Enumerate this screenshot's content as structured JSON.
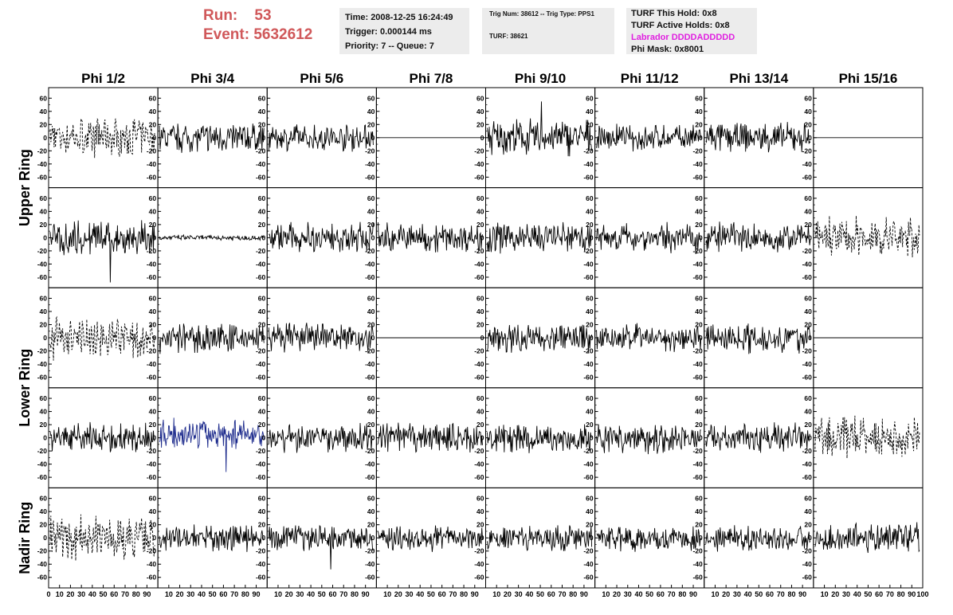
{
  "header": {
    "run_label": "Run:",
    "run_value": "53",
    "event_label": "Event:",
    "event_value": "5632612"
  },
  "info": {
    "time": "Time: 2008-12-25 16:24:49",
    "trigger": "Trigger: 0.000144 ms",
    "priority": "Priority: 7 -- Queue: 7",
    "trig_num": "Trig Num: 38612 -- Trig Type: PPS1",
    "turf": "TURF: 38621",
    "turf_this_hold": "TURF This Hold: 0x8",
    "turf_active_holds": "TURF Active Holds: 0x8",
    "labrador": "Labrador DDDDADDDDD",
    "phi_mask": "Phi Mask: 0x8001"
  },
  "colors": {
    "run_text": "#d0585a",
    "labrador_text": "#e020e0",
    "trace": "#000000",
    "highlight_trace": "#1c2a8c",
    "panel_bg": "#ececec"
  },
  "chart_data": {
    "type": "line",
    "columns": [
      "Phi 1/2",
      "Phi 3/4",
      "Phi 5/6",
      "Phi 7/8",
      "Phi 9/10",
      "Phi 11/12",
      "Phi 13/14",
      "Phi 15/16"
    ],
    "row_groups": [
      {
        "label": "Upper Ring",
        "rows": 2
      },
      {
        "label": "Lower Ring",
        "rows": 2
      },
      {
        "label": "Nadir Ring",
        "rows": 1
      }
    ],
    "ylim": [
      -70,
      70
    ],
    "y_ticks": [
      -60,
      -40,
      -20,
      0,
      20,
      40,
      60
    ],
    "xlim": [
      0,
      100
    ],
    "x_ticks": [
      0,
      10,
      20,
      30,
      40,
      50,
      60,
      70,
      80,
      90,
      100
    ],
    "grid": false,
    "traces": [
      [
        {
          "style": "dashed",
          "amp": 22
        },
        {
          "style": "solid",
          "amp": 16
        },
        {
          "style": "solid",
          "amp": 14
        },
        {
          "style": "flat",
          "amp": 0
        },
        {
          "style": "solid",
          "amp": 20,
          "spike": 55
        },
        {
          "style": "solid",
          "amp": 14
        },
        {
          "style": "solid",
          "amp": 16
        },
        {
          "style": "flat",
          "amp": 0
        }
      ],
      [
        {
          "style": "solid",
          "amp": 18,
          "spike": -68
        },
        {
          "style": "solid",
          "amp": 3
        },
        {
          "style": "solid",
          "amp": 16
        },
        {
          "style": "solid",
          "amp": 16
        },
        {
          "style": "solid",
          "amp": 16
        },
        {
          "style": "solid",
          "amp": 16
        },
        {
          "style": "solid",
          "amp": 16
        },
        {
          "style": "dashed",
          "amp": 22
        }
      ],
      [
        {
          "style": "dashed",
          "amp": 22
        },
        {
          "style": "solid",
          "amp": 16
        },
        {
          "style": "solid",
          "amp": 16
        },
        {
          "style": "flat",
          "amp": 0
        },
        {
          "style": "solid",
          "amp": 16
        },
        {
          "style": "solid",
          "amp": 16
        },
        {
          "style": "solid",
          "amp": 16
        },
        {
          "style": "flat",
          "amp": 0
        }
      ],
      [
        {
          "style": "solid",
          "amp": 16
        },
        {
          "style": "blue",
          "amp": 16,
          "offset": 6,
          "spike": -52
        },
        {
          "style": "solid",
          "amp": 16
        },
        {
          "style": "solid",
          "amp": 16
        },
        {
          "style": "solid",
          "amp": 16
        },
        {
          "style": "solid",
          "amp": 16
        },
        {
          "style": "solid",
          "amp": 16
        },
        {
          "style": "dashed",
          "amp": 22
        }
      ],
      [
        {
          "style": "dashed",
          "amp": 24
        },
        {
          "style": "solid",
          "amp": 14
        },
        {
          "style": "solid",
          "amp": 14,
          "spike": -48
        },
        {
          "style": "solid",
          "amp": 14
        },
        {
          "style": "solid",
          "amp": 14
        },
        {
          "style": "solid",
          "amp": 14
        },
        {
          "style": "solid",
          "amp": 14
        },
        {
          "style": "solid",
          "amp": 16
        }
      ]
    ]
  }
}
